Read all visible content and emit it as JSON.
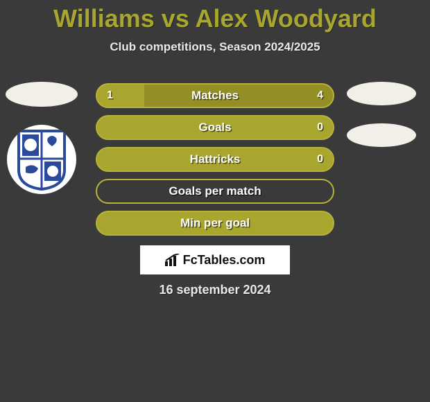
{
  "title": "Williams vs Alex Woodyard",
  "subtitle": "Club competitions, Season 2024/2025",
  "date": "16 september 2024",
  "brand": "FcTables.com",
  "colors": {
    "accent": "#a9a62f",
    "accent_border": "#b6b33a",
    "background": "#3a3a3a"
  },
  "stats": [
    {
      "label": "Matches",
      "left_value": "1",
      "right_value": "4",
      "left_pct": 20,
      "right_pct": 80,
      "left_fill": "#a9a62f",
      "right_fill": "#948f24",
      "border_color": "#b6b33a",
      "bg_fill": "#a9a62f"
    },
    {
      "label": "Goals",
      "left_value": "",
      "right_value": "0",
      "left_pct": 0,
      "right_pct": 100,
      "left_fill": "#a9a62f",
      "right_fill": "#a9a62f",
      "border_color": "#b6b33a",
      "bg_fill": "#a9a62f"
    },
    {
      "label": "Hattricks",
      "left_value": "",
      "right_value": "0",
      "left_pct": 0,
      "right_pct": 100,
      "left_fill": "#a9a62f",
      "right_fill": "#a9a62f",
      "border_color": "#b6b33a",
      "bg_fill": "#a9a62f"
    },
    {
      "label": "Goals per match",
      "left_value": "",
      "right_value": "",
      "left_pct": 0,
      "right_pct": 0,
      "left_fill": "#a9a62f",
      "right_fill": "#a9a62f",
      "border_color": "#b6b33a",
      "bg_fill": "#3a3a3a"
    },
    {
      "label": "Min per goal",
      "left_value": "",
      "right_value": "",
      "left_pct": 0,
      "right_pct": 0,
      "left_fill": "#a9a62f",
      "right_fill": "#a9a62f",
      "border_color": "#b6b33a",
      "bg_fill": "#a9a62f"
    }
  ]
}
